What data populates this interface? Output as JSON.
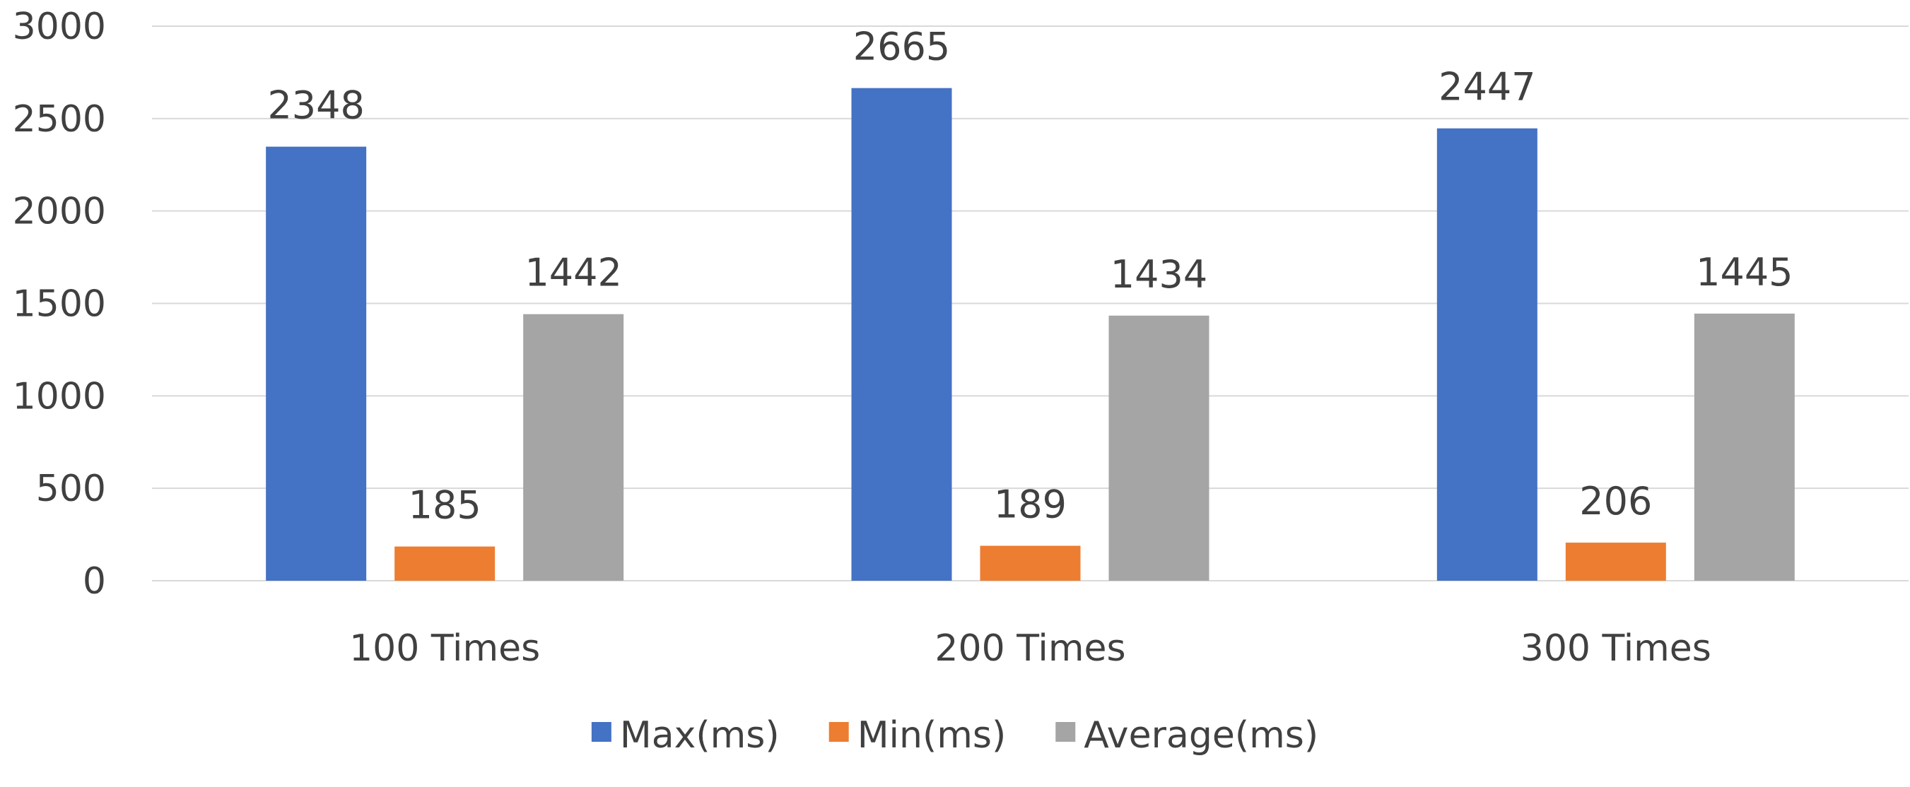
{
  "chart_data": {
    "type": "bar",
    "title": "",
    "xlabel": "",
    "ylabel": "",
    "categories": [
      "100 Times",
      "200 Times",
      "300 Times"
    ],
    "series": [
      {
        "name": "Max(ms)",
        "values": [
          2348,
          2665,
          2447
        ],
        "color": "#4472C4"
      },
      {
        "name": "Min(ms)",
        "values": [
          185,
          189,
          206
        ],
        "color": "#ED7D31"
      },
      {
        "name": "Average(ms)",
        "values": [
          1442,
          1434,
          1445
        ],
        "color": "#A5A5A5"
      }
    ],
    "ylim": [
      0,
      3000
    ],
    "yticks": [
      0,
      500,
      1000,
      1500,
      2000,
      2500,
      3000
    ],
    "grid": true,
    "legend_position": "bottom",
    "data_labels": true,
    "gridline_color": "#D9D9D9",
    "text_color": "#404040"
  }
}
